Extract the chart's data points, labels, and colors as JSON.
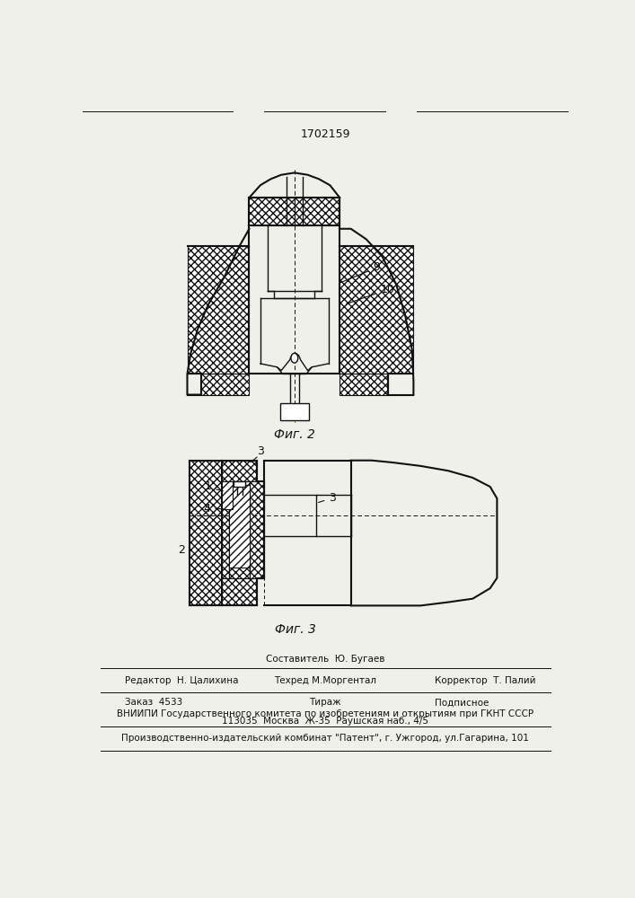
{
  "patent_number": "1702159",
  "fig2_label": "Фиг. 2",
  "fig3_label": "Фиг. 3",
  "footer_editor": "Редактор  Н. Цалихина",
  "footer_composer": "Составитель  Ю. Бугаев",
  "footer_techred": "Техред М.Моргентал",
  "footer_corrector": "Корректор  Т. Палий",
  "footer_order": "Заказ  4533",
  "footer_tirazh": "Тираж",
  "footer_podpisnoe": "Подписное",
  "footer_vniipи": "ВНИИПИ Государственного комитета по изобретениям и открытиям при ГКНТ СССР",
  "footer_address": "113035  Москва  Ж-35  Раушская наб., 4/5",
  "footer_plant": "Производственно-издательский комбинат \"Патент\", г. Ужгород, ул.Гагарина, 101",
  "bg_color": "#f0f0eb",
  "line_color": "#111111"
}
